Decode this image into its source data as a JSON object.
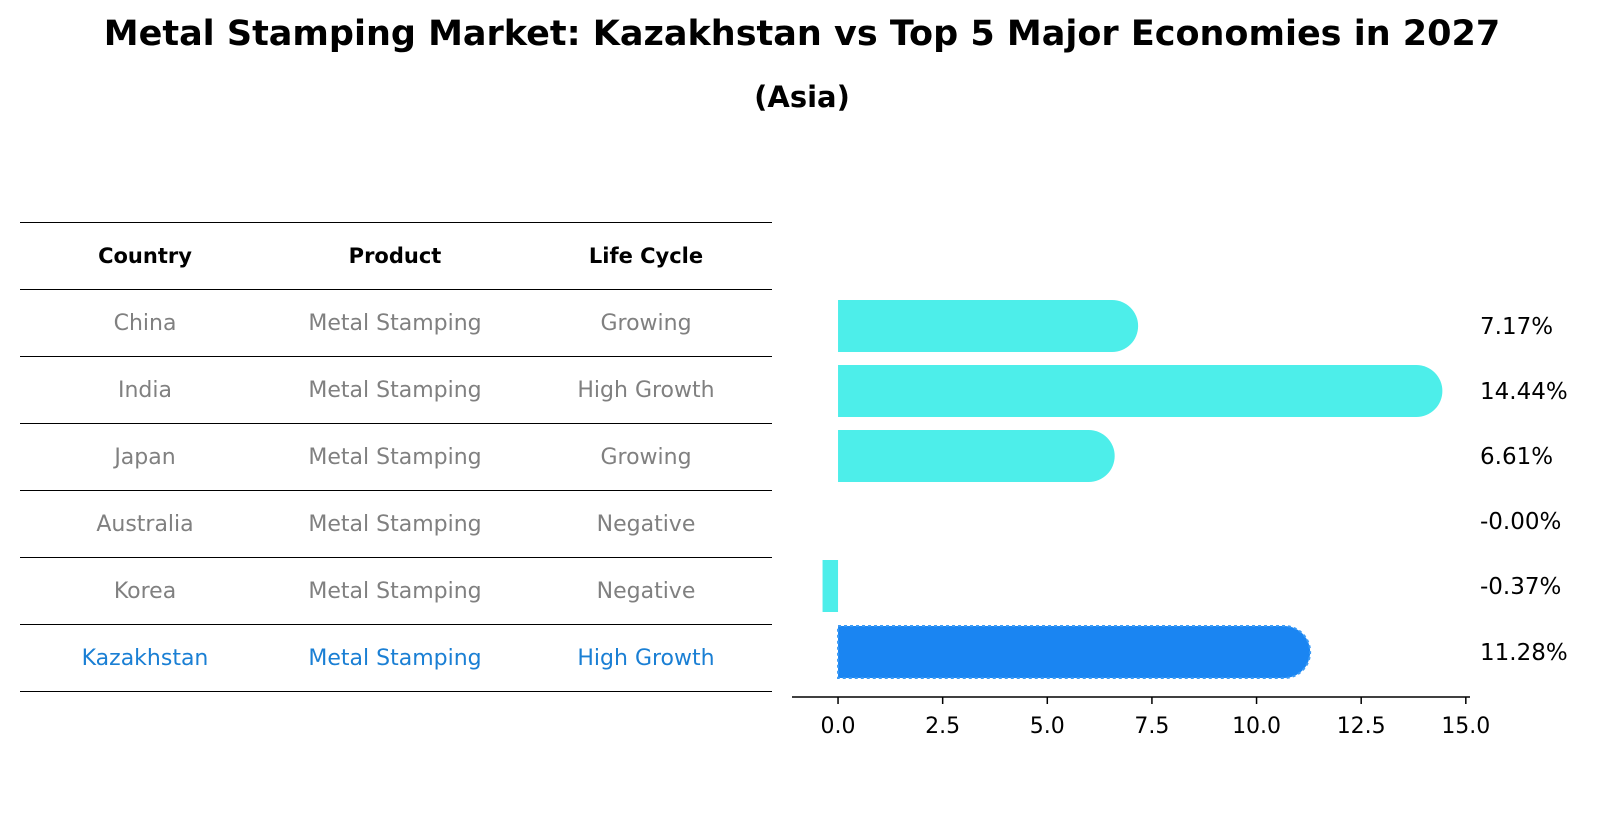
{
  "title": "Metal Stamping Market: Kazakhstan vs Top 5 Major Economies in 2027",
  "subtitle": "(Asia)",
  "table": {
    "headers": [
      "Country",
      "Product",
      "Life Cycle"
    ],
    "rows": [
      [
        "China",
        "Metal Stamping",
        "Growing"
      ],
      [
        "India",
        "Metal Stamping",
        "High Growth"
      ],
      [
        "Japan",
        "Metal Stamping",
        "Growing"
      ],
      [
        "Australia",
        "Metal Stamping",
        "Negative"
      ],
      [
        "Korea",
        "Metal Stamping",
        "Negative"
      ],
      [
        "Kazakhstan",
        "Metal Stamping",
        "High Growth"
      ]
    ],
    "highlight_row": 5
  },
  "colors": {
    "bar": "#4deeea",
    "highlight_bar": "#1a85f2",
    "table_text": "#808080",
    "highlight_text": "#1a7fd4"
  },
  "chart_data": {
    "type": "bar",
    "orientation": "horizontal",
    "categories": [
      "China",
      "India",
      "Japan",
      "Australia",
      "Korea",
      "Kazakhstan"
    ],
    "values": [
      7.17,
      14.44,
      6.61,
      -0.0,
      -0.37,
      11.28
    ],
    "value_labels": [
      "7.17%",
      "14.44%",
      "6.61%",
      "-0.00%",
      "-0.37%",
      "11.28%"
    ],
    "highlight_index": 5,
    "xlim": [
      -1.1,
      15.1
    ],
    "xticks": [
      0.0,
      2.5,
      5.0,
      7.5,
      10.0,
      12.5,
      15.0
    ],
    "xtick_labels": [
      "0.0",
      "2.5",
      "5.0",
      "7.5",
      "10.0",
      "12.5",
      "15.0"
    ]
  }
}
